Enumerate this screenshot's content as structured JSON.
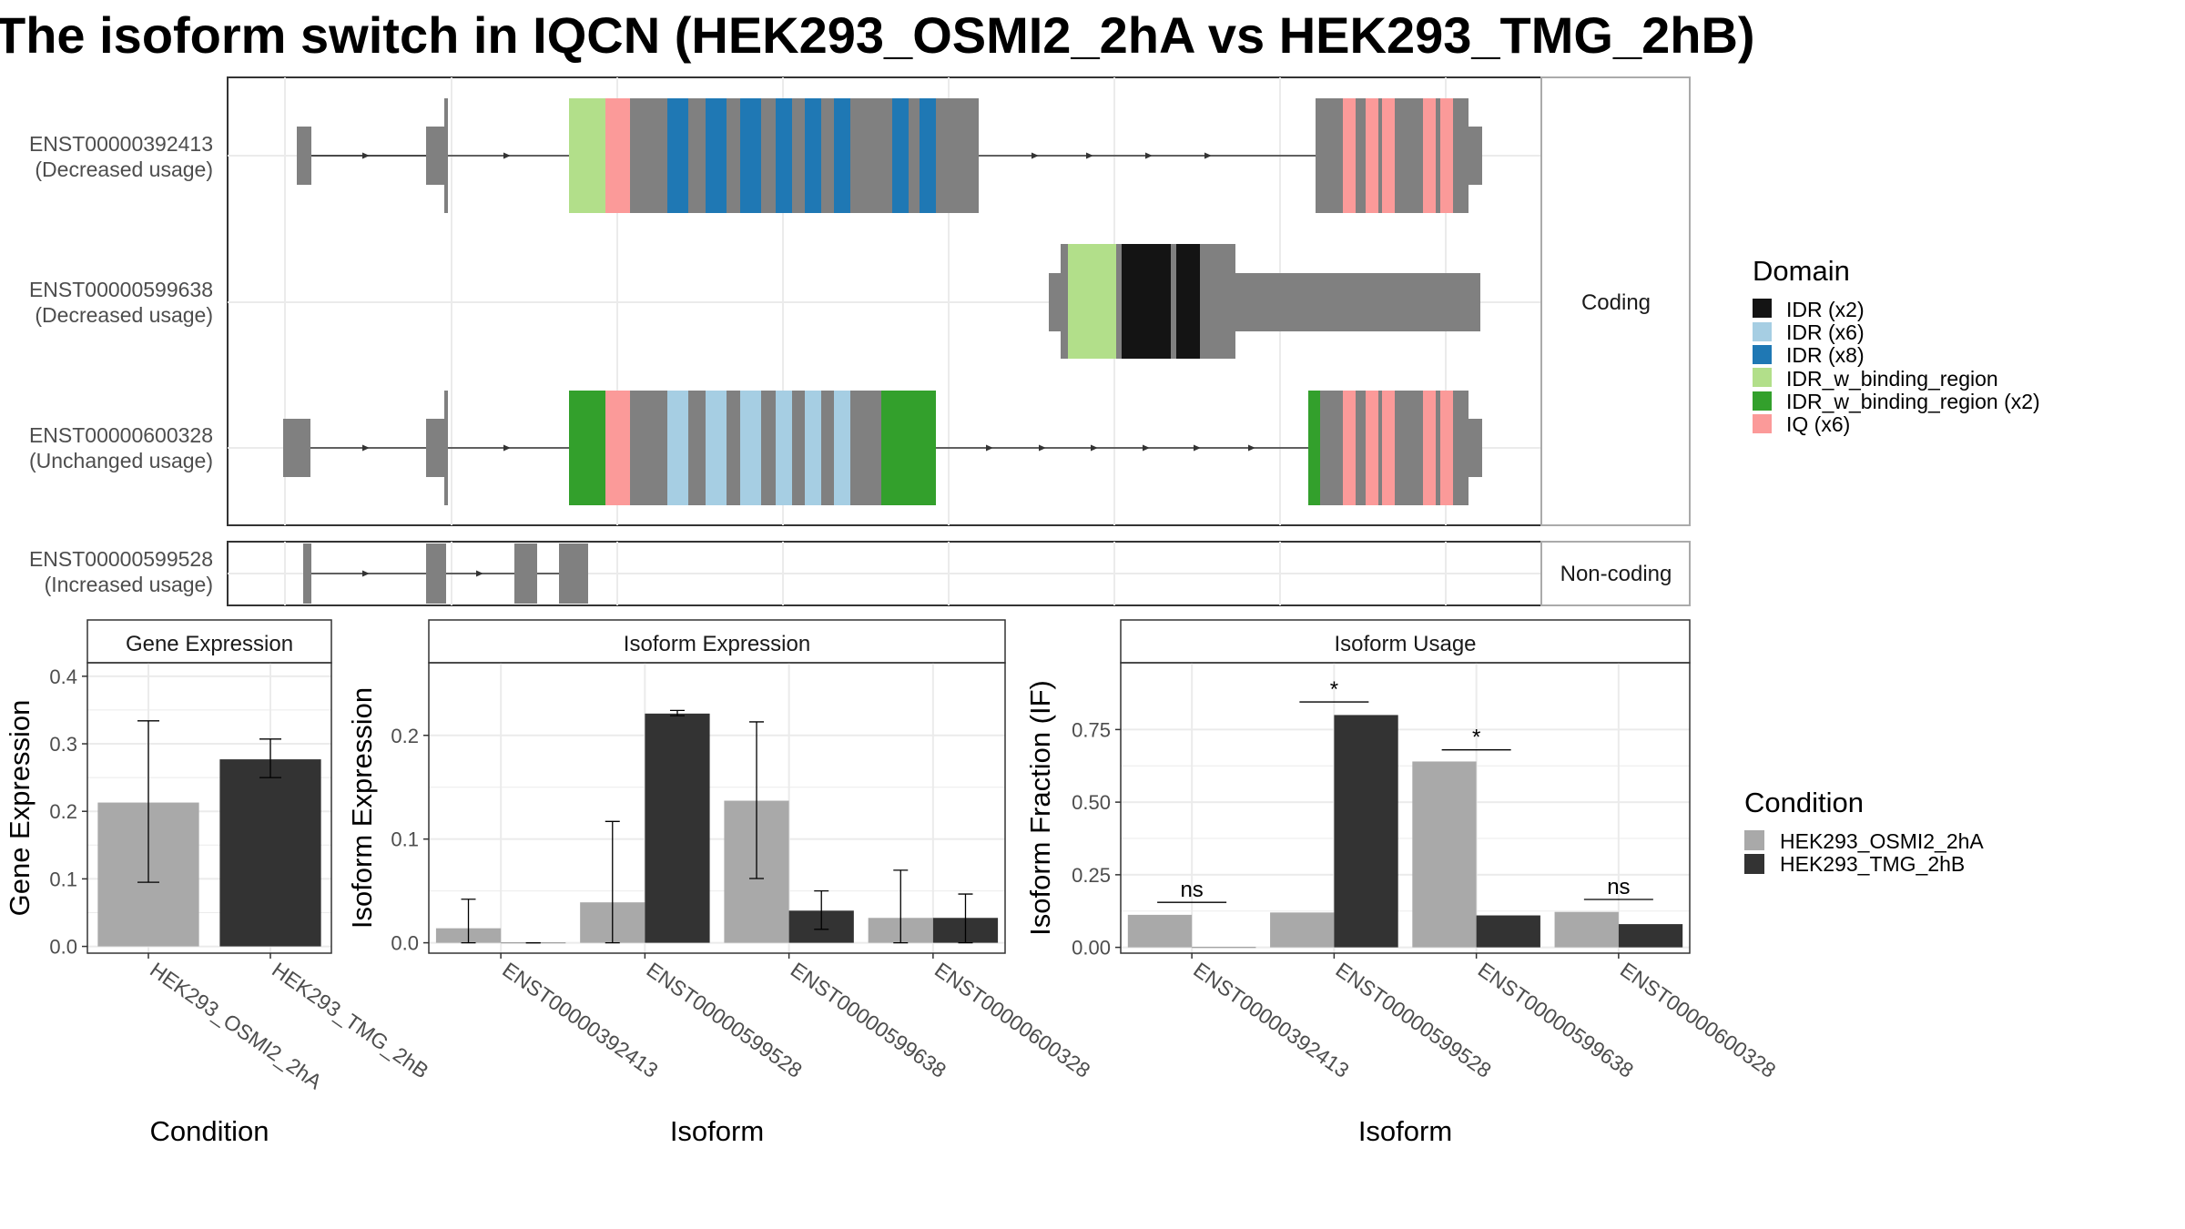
{
  "title": "The isoform switch in IQCN (HEK293_OSMI2_2hA vs HEK293_TMG_2hB)",
  "colors": {
    "intron_line": "#333333",
    "exon": "#808080",
    "cond_a": "#a9a9a9",
    "cond_b": "#333333",
    "panel_border": "#333333",
    "strip_border": "#aaaaaa",
    "grid": "#ebebeb"
  },
  "structure": {
    "facets": [
      "Coding",
      "Non-coding"
    ],
    "isoforms": [
      {
        "id": "ENST00000392413",
        "usage": "(Decreased usage)",
        "facet": "Coding"
      },
      {
        "id": "ENST00000599638",
        "usage": "(Decreased usage)",
        "facet": "Coding"
      },
      {
        "id": "ENST00000600328",
        "usage": "(Unchanged usage)",
        "facet": "Coding"
      },
      {
        "id": "ENST00000599528",
        "usage": "(Increased usage)",
        "facet": "Non-coding"
      }
    ],
    "domain_legend": {
      "title": "Domain",
      "items": [
        {
          "label": "IDR (x2)",
          "color": "#141414"
        },
        {
          "label": "IDR (x6)",
          "color": "#a6cee3"
        },
        {
          "label": "IDR (x8)",
          "color": "#1f78b4"
        },
        {
          "label": "IDR_w_binding_region",
          "color": "#b2df8a"
        },
        {
          "label": "IDR_w_binding_region (x2)",
          "color": "#33a02c"
        },
        {
          "label": "IQ (x6)",
          "color": "#fb9a99"
        }
      ]
    }
  },
  "chart_data": [
    {
      "type": "bar",
      "title": "Gene Expression",
      "xlabel": "Condition",
      "ylabel": "Gene Expression",
      "categories": [
        "HEK293_OSMI2_2hA",
        "HEK293_TMG_2hB"
      ],
      "values": [
        0.213,
        0.277
      ],
      "error_low": [
        0.095,
        0.25
      ],
      "error_high": [
        0.334,
        0.307
      ],
      "ylim": [
        -0.01,
        0.42
      ],
      "yticks": [
        "0.0",
        "0.1",
        "0.2",
        "0.3",
        "0.4"
      ],
      "ytick_values": [
        0,
        0.1,
        0.2,
        0.3,
        0.4
      ],
      "grid": true
    },
    {
      "type": "bar",
      "title": "Isoform Expression",
      "xlabel": "Isoform",
      "ylabel": "Isoform Expression",
      "categories": [
        "ENST00000392413",
        "ENST00000599528",
        "ENST00000599638",
        "ENST00000600328"
      ],
      "series": [
        {
          "name": "HEK293_OSMI2_2hA",
          "values": [
            0.014,
            0.039,
            0.137,
            0.024
          ],
          "error_low": [
            0.0,
            0.0,
            0.062,
            0.0
          ],
          "error_high": [
            0.042,
            0.117,
            0.213,
            0.07
          ]
        },
        {
          "name": "HEK293_TMG_2hB",
          "values": [
            0.0,
            0.221,
            0.031,
            0.024
          ],
          "error_low": [
            0.0,
            0.219,
            0.013,
            0.0
          ],
          "error_high": [
            0.0,
            0.224,
            0.05,
            0.047
          ]
        }
      ],
      "ylim": [
        -0.01,
        0.27
      ],
      "yticks": [
        "0.0",
        "0.1",
        "0.2"
      ],
      "ytick_values": [
        0,
        0.1,
        0.2
      ],
      "grid": true
    },
    {
      "type": "bar",
      "title": "Isoform Usage",
      "xlabel": "Isoform",
      "ylabel": "Isoform Fraction (IF)",
      "categories": [
        "ENST00000392413",
        "ENST00000599528",
        "ENST00000599638",
        "ENST00000600328"
      ],
      "series": [
        {
          "name": "HEK293_OSMI2_2hA",
          "values": [
            0.112,
            0.12,
            0.64,
            0.122
          ]
        },
        {
          "name": "HEK293_TMG_2hB",
          "values": [
            0.0,
            0.8,
            0.11,
            0.08
          ]
        }
      ],
      "significance": [
        "ns",
        "*",
        "*",
        "ns"
      ],
      "significance_y": [
        0.155,
        0.845,
        0.68,
        0.165
      ],
      "ylim": [
        -0.02,
        0.98
      ],
      "yticks": [
        "0.00",
        "0.25",
        "0.50",
        "0.75"
      ],
      "ytick_values": [
        0,
        0.25,
        0.5,
        0.75
      ],
      "grid": true
    }
  ],
  "condition_legend": {
    "title": "Condition",
    "items": [
      "HEK293_OSMI2_2hA",
      "HEK293_TMG_2hB"
    ]
  }
}
